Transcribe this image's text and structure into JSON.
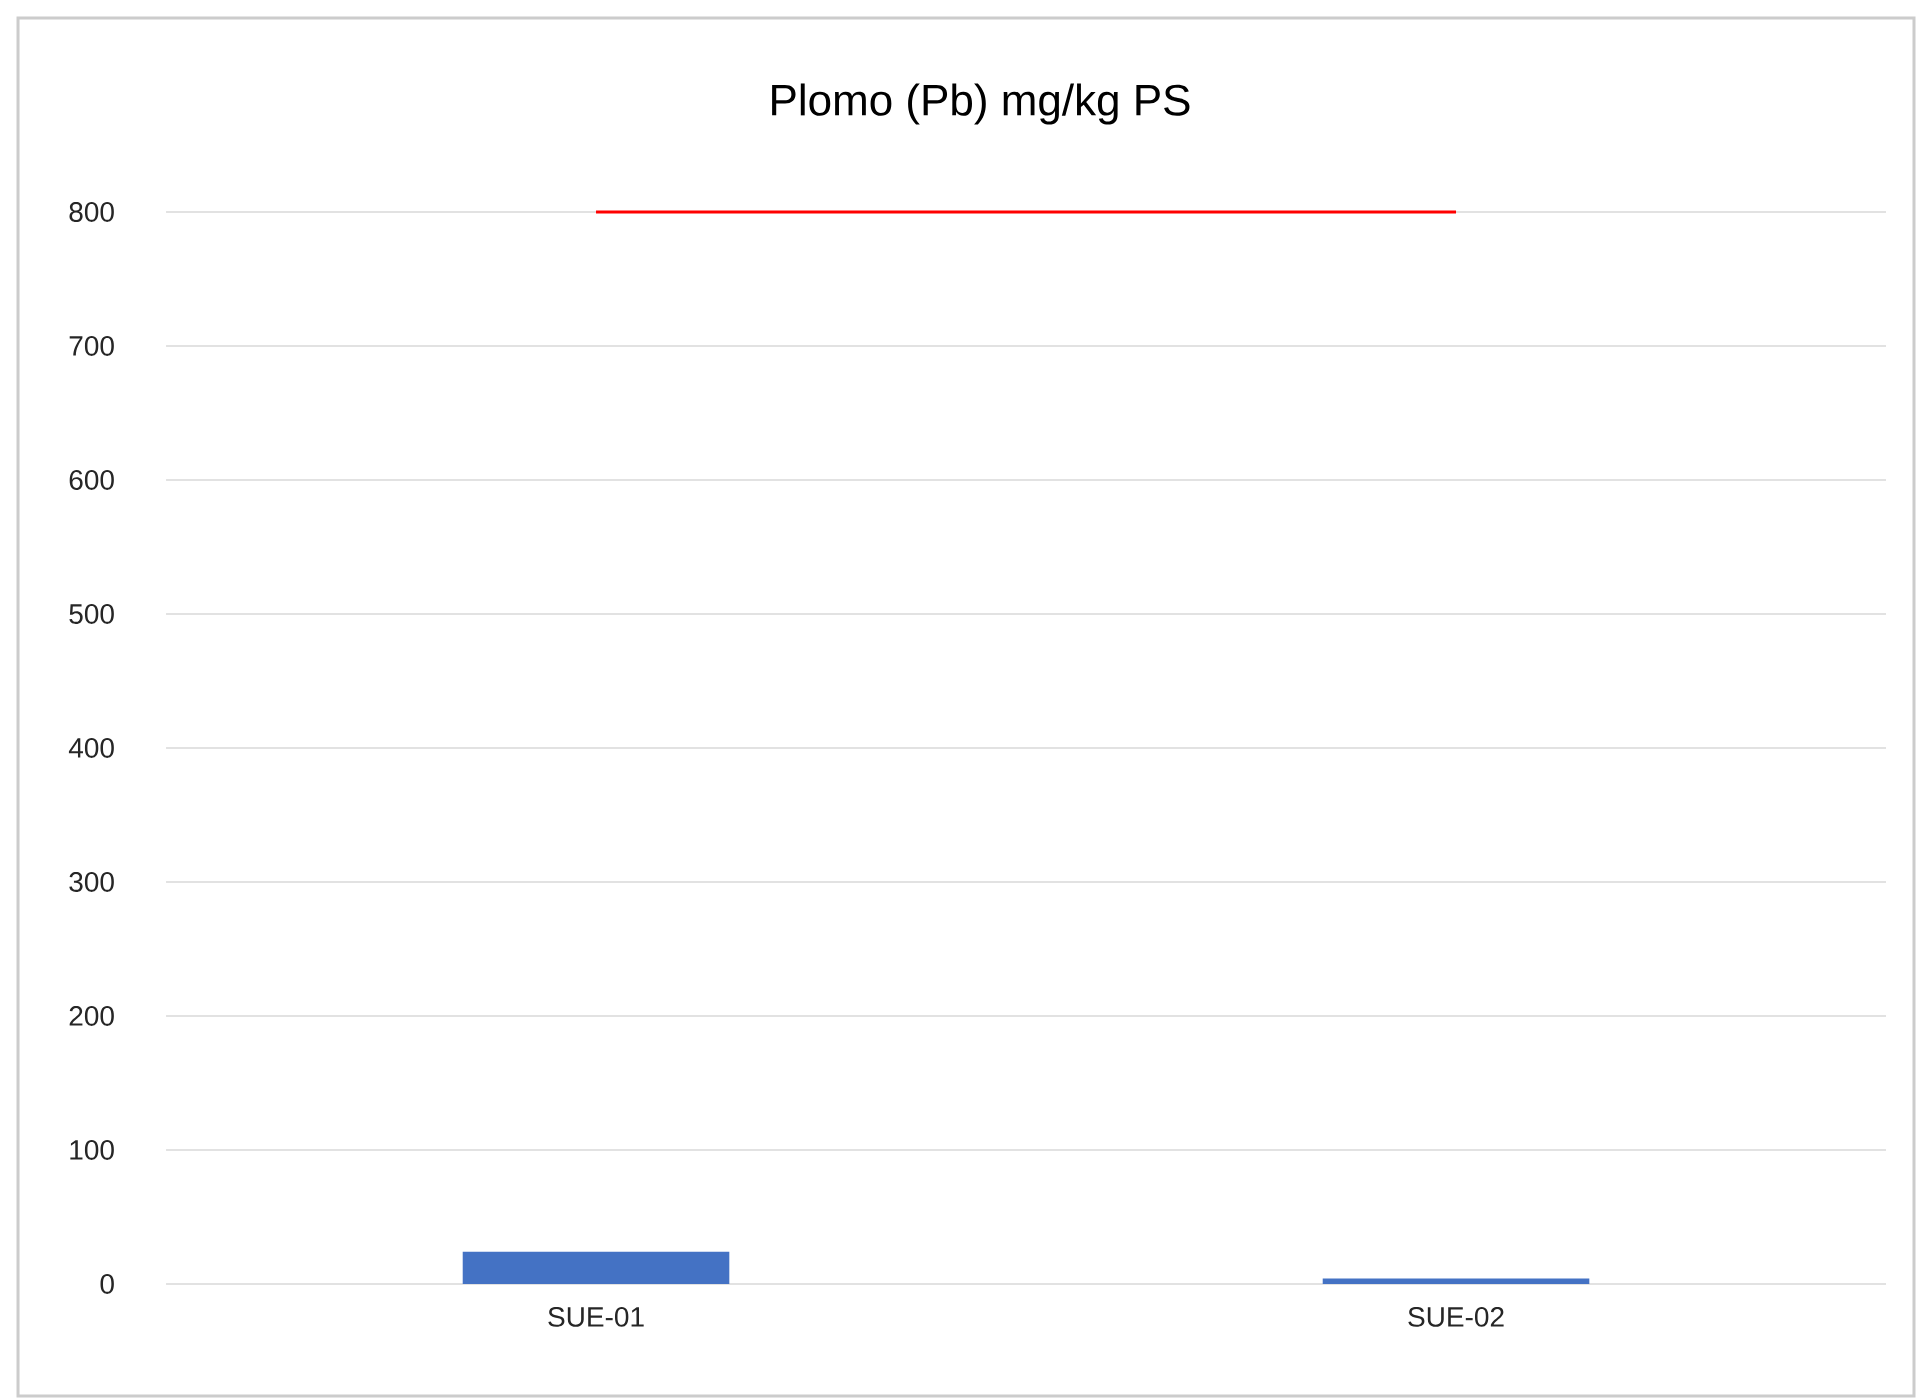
{
  "chart_data": {
    "type": "bar",
    "title": "Plomo (Pb) mg/kg PS",
    "categories": [
      "SUE-01",
      "SUE-02"
    ],
    "series": [
      {
        "color": "#4472c4",
        "values": [
          24,
          4
        ]
      },
      {
        "type": "line",
        "color": "#ff0000",
        "values": [
          800,
          800
        ],
        "marker": "none"
      }
    ],
    "ylim": [
      0,
      800
    ],
    "yticks": [
      0,
      100,
      200,
      300,
      400,
      500,
      600,
      700,
      800
    ],
    "grid": "y"
  }
}
